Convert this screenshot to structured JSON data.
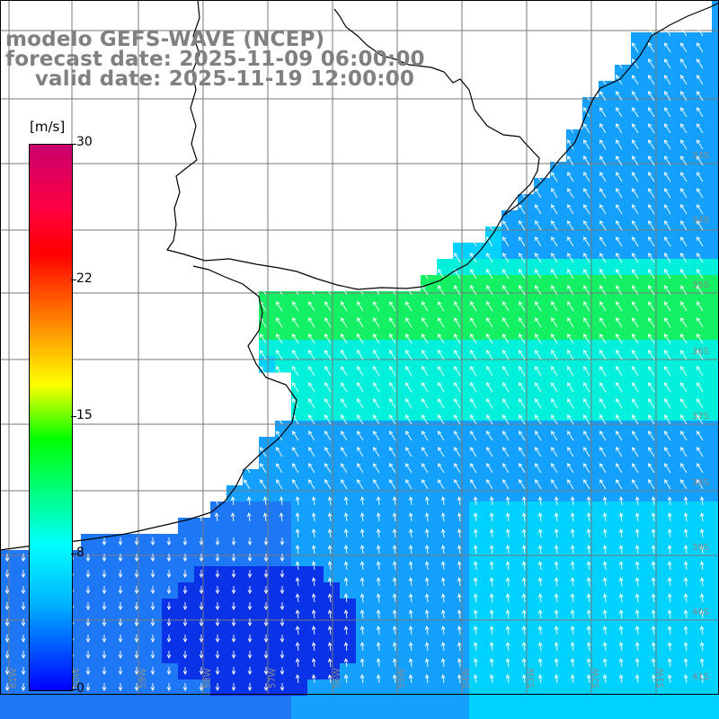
{
  "title": {
    "line1": "modelo GEFS-WAVE (NCEP)",
    "line2": "forecast date: 2025-11-09 06:00:00",
    "line3": "    valid date: 2025-11-19 12:00:00"
  },
  "colorbar": {
    "unit": "[m/s]",
    "ticks": [
      "30",
      "22",
      "15",
      "8",
      "0"
    ],
    "range": [
      0,
      30
    ],
    "colors": [
      "#0000ff",
      "#00b4ff",
      "#00ffff",
      "#00ff00",
      "#ffff00",
      "#ff8000",
      "#ff0000",
      "#c8006e"
    ]
  },
  "map": {
    "lat_labels": [
      "33S",
      "34S",
      "35S",
      "36S",
      "37S",
      "38S",
      "39S",
      "40S",
      "41S"
    ],
    "lon_labels": [
      "61W",
      "60W",
      "59W",
      "58W",
      "57W",
      "56W",
      "55W",
      "54W",
      "53W",
      "52W",
      "51W"
    ],
    "field_colors": {
      "deep_blue": "#0a32e6",
      "blue": "#1e78f5",
      "light_blue": "#14a0ff",
      "cyan": "#00d2ff",
      "aqua": "#00f0dc",
      "green": "#14f064"
    }
  }
}
